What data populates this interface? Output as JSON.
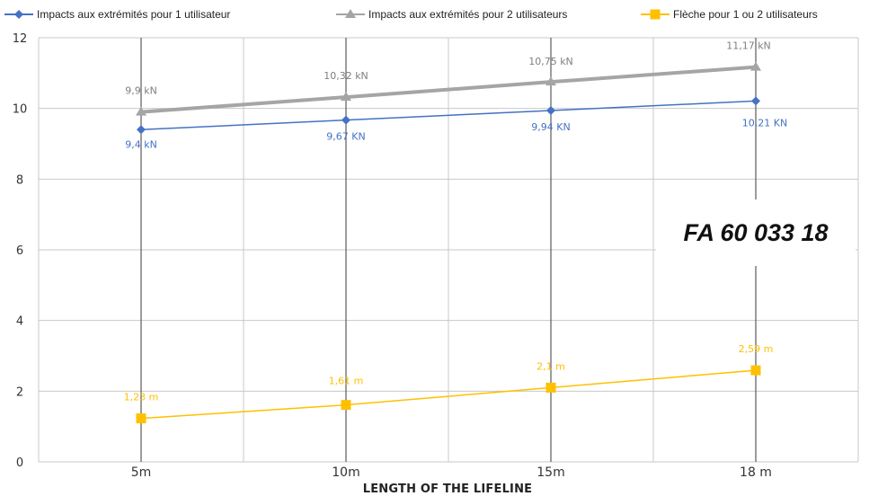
{
  "chart_data": {
    "type": "line",
    "categories": [
      "5m",
      "10m",
      "15m",
      "18 m"
    ],
    "xlabel": "LENGTH OF THE LIFELINE",
    "ylabel": "",
    "ylim": [
      0,
      12
    ],
    "yticks": [
      0,
      2,
      4,
      6,
      8,
      10,
      12
    ],
    "grid": true,
    "legend_position": "top",
    "annotation": "FA 60 033 18",
    "series": [
      {
        "name": "Impacts aux extrémités pour 1 utilisateur",
        "values": [
          9.4,
          9.67,
          9.94,
          10.21
        ],
        "labels": [
          "9,4 kN",
          "9,67 KN",
          "9,94 KN",
          "10,21 KN"
        ],
        "color": "#4472c4",
        "marker": "diamond"
      },
      {
        "name": "Impacts aux extrémités pour 2 utilisateurs",
        "values": [
          9.9,
          10.32,
          10.75,
          11.17
        ],
        "labels": [
          "9,9 kN",
          "10,32 kN",
          "10,75 kN",
          "11,17 kN"
        ],
        "color": "#a5a5a5",
        "marker": "triangle"
      },
      {
        "name": "Flèche pour 1 ou  2 utilisateurs",
        "values": [
          1.23,
          1.61,
          2.1,
          2.59
        ],
        "labels": [
          "1,23 m",
          "1,61 m",
          "2,1 m",
          "2,59 m"
        ],
        "color": "#ffc000",
        "marker": "square"
      }
    ]
  }
}
